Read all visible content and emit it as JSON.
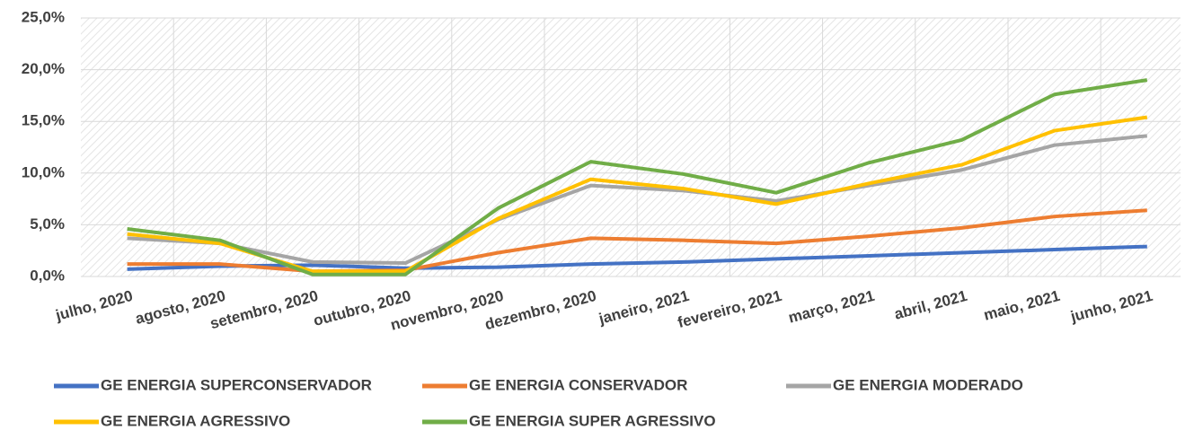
{
  "chart_data": {
    "type": "line",
    "categories": [
      "julho, 2020",
      "agosto, 2020",
      "setembro, 2020",
      "outubro, 2020",
      "novembro, 2020",
      "dezembro, 2020",
      "janeiro, 2021",
      "fevereiro, 2021",
      "março, 2021",
      "abril, 2021",
      "maio, 2021",
      "junho, 2021"
    ],
    "series": [
      {
        "name": "GE ENERGIA SUPERCONSERVADOR",
        "color": "#4472c4",
        "values": [
          0.7,
          1.0,
          1.1,
          0.8,
          0.9,
          1.2,
          1.4,
          1.7,
          2.0,
          2.3,
          2.6,
          2.9
        ]
      },
      {
        "name": "GE ENERGIA CONSERVADOR",
        "color": "#ed7d31",
        "values": [
          1.2,
          1.2,
          0.5,
          0.6,
          2.3,
          3.7,
          3.5,
          3.2,
          3.9,
          4.7,
          5.8,
          6.4
        ]
      },
      {
        "name": "GE ENERGIA MODERADO",
        "color": "#a5a5a5",
        "values": [
          3.7,
          3.2,
          1.4,
          1.3,
          5.5,
          8.8,
          8.3,
          7.3,
          8.8,
          10.3,
          12.7,
          13.6
        ]
      },
      {
        "name": "GE ENERGIA AGRESSIVO",
        "color": "#ffc000",
        "values": [
          4.1,
          3.2,
          0.5,
          0.5,
          5.6,
          9.4,
          8.5,
          7.0,
          9.0,
          10.8,
          14.1,
          15.4
        ]
      },
      {
        "name": "GE ENERGIA SUPER AGRESSIVO",
        "color": "#70ad47",
        "values": [
          4.6,
          3.5,
          0.2,
          0.2,
          6.6,
          11.1,
          9.9,
          8.1,
          11.0,
          13.2,
          17.6,
          19.0
        ]
      }
    ],
    "ylim": [
      0,
      25
    ],
    "yticks": [
      {
        "value": 0,
        "label": "0,0%"
      },
      {
        "value": 5,
        "label": "5,0%"
      },
      {
        "value": 10,
        "label": "10,0%"
      },
      {
        "value": 15,
        "label": "15,0%"
      },
      {
        "value": 20,
        "label": "20,0%"
      },
      {
        "value": 25,
        "label": "25,0%"
      }
    ],
    "grid": true,
    "legend": "bottom"
  }
}
